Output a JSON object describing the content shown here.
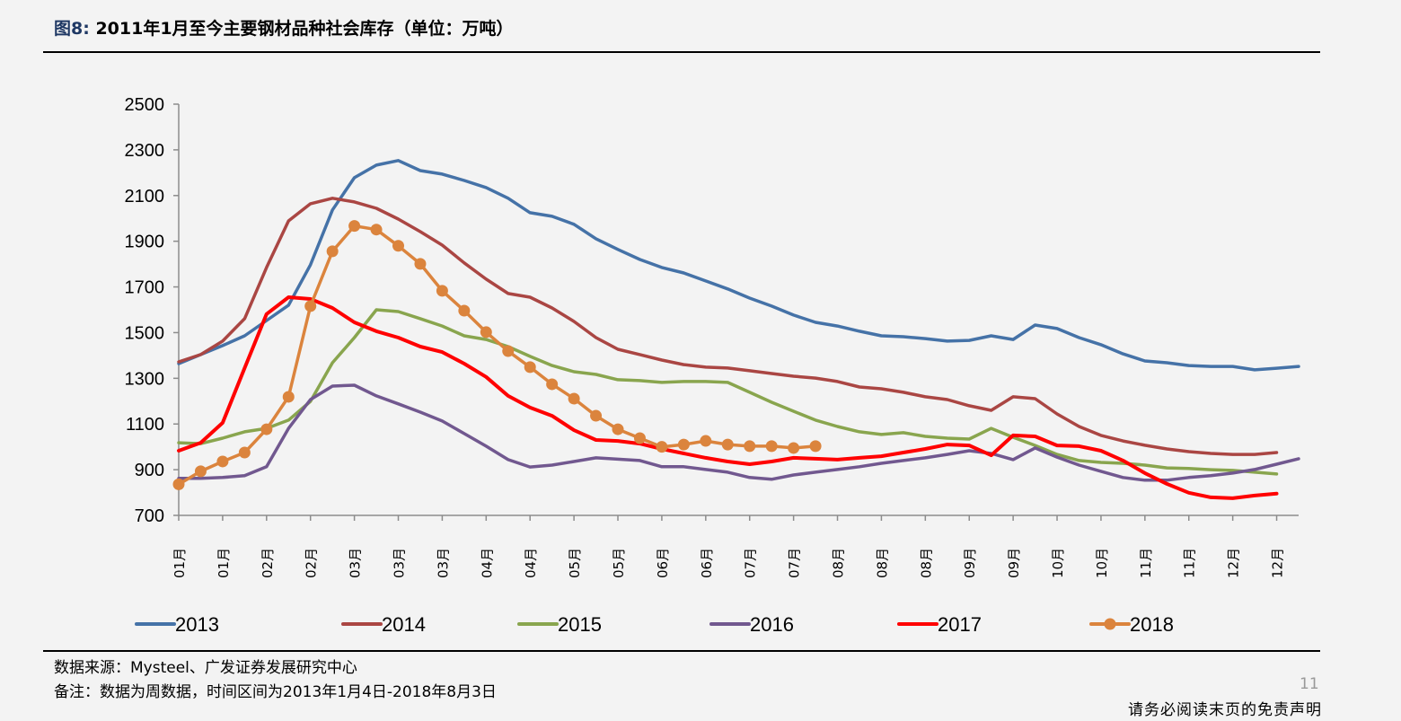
{
  "header": {
    "figure_number": "图8:",
    "title": "2011年1月至今主要钢材品种社会库存（单位：万吨）"
  },
  "footer": {
    "source": "数据来源：Mysteel、广发证券发展研究中心",
    "remark": "备注：数据为周数据，时间区间为2013年1月4日-2018年8月3日",
    "page_number": "11",
    "disclaimer": "请务必阅读末页的免责声明"
  },
  "chart_data": {
    "type": "line",
    "title": "2011年1月至今主要钢材品种社会库存（单位：万吨）",
    "xlabel": "",
    "ylabel": "万吨",
    "ylim": [
      700,
      2500
    ],
    "yticks": [
      700,
      900,
      1100,
      1300,
      1500,
      1700,
      1900,
      2100,
      2300,
      2500
    ],
    "grid": false,
    "legend_position": "bottom",
    "x_tick_labels": [
      "01月",
      "01月",
      "02月",
      "02月",
      "03月",
      "03月",
      "03月",
      "04月",
      "04月",
      "05月",
      "05月",
      "06月",
      "06月",
      "07月",
      "07月",
      "08月",
      "08月",
      "08月",
      "09月",
      "09月",
      "10月",
      "10月",
      "11月",
      "11月",
      "12月",
      "12月"
    ],
    "x_points": 52,
    "series": [
      {
        "name": "2013",
        "color": "#4572a7",
        "marker": false,
        "values": [
          1364,
          1404,
          1443,
          1486,
          1553,
          1620,
          1797,
          2037,
          2178,
          2233,
          2253,
          2209,
          2194,
          2166,
          2135,
          2088,
          2025,
          2009,
          1974,
          1911,
          1864,
          1820,
          1785,
          1761,
          1726,
          1691,
          1651,
          1616,
          1577,
          1545,
          1529,
          1506,
          1486,
          1482,
          1474,
          1463,
          1466,
          1486,
          1470,
          1533,
          1518,
          1478,
          1447,
          1407,
          1376,
          1368,
          1356,
          1352,
          1352,
          1337,
          1344,
          1352
        ]
      },
      {
        "name": "2014",
        "color": "#aa4643",
        "marker": false,
        "values": [
          1372,
          1404,
          1463,
          1561,
          1785,
          1989,
          2064,
          2088,
          2072,
          2044,
          1997,
          1942,
          1883,
          1805,
          1734,
          1671,
          1655,
          1608,
          1549,
          1478,
          1427,
          1404,
          1380,
          1360,
          1349,
          1345,
          1333,
          1321,
          1309,
          1301,
          1286,
          1262,
          1254,
          1239,
          1219,
          1207,
          1180,
          1160,
          1219,
          1211,
          1144,
          1089,
          1050,
          1026,
          1007,
          991,
          979,
          971,
          967,
          967,
          975
        ]
      },
      {
        "name": "2015",
        "color": "#89a54e",
        "marker": false,
        "values": [
          1018,
          1014,
          1038,
          1066,
          1081,
          1117,
          1199,
          1368,
          1478,
          1600,
          1592,
          1561,
          1529,
          1486,
          1470,
          1439,
          1396,
          1356,
          1329,
          1317,
          1294,
          1290,
          1282,
          1286,
          1286,
          1282,
          1239,
          1195,
          1156,
          1117,
          1089,
          1066,
          1054,
          1062,
          1046,
          1038,
          1034,
          1081,
          1042,
          1006,
          967,
          940,
          932,
          928,
          920,
          908,
          905,
          900,
          897,
          889,
          881
        ]
      },
      {
        "name": "2016",
        "color": "#71588f",
        "marker": false,
        "values": [
          862,
          862,
          866,
          874,
          913,
          1081,
          1207,
          1266,
          1270,
          1223,
          1188,
          1152,
          1113,
          1058,
          1003,
          944,
          912,
          920,
          936,
          952,
          946,
          940,
          913,
          913,
          901,
          889,
          866,
          858,
          877,
          889,
          901,
          913,
          928,
          940,
          952,
          967,
          983,
          971,
          944,
          995,
          955,
          920,
          893,
          866,
          854,
          854,
          866,
          874,
          885,
          901,
          924,
          948
        ]
      },
      {
        "name": "2017",
        "color": "#ff0000",
        "marker": false,
        "values": [
          983,
          1018,
          1105,
          1345,
          1581,
          1655,
          1647,
          1608,
          1545,
          1506,
          1478,
          1439,
          1415,
          1364,
          1306,
          1223,
          1172,
          1136,
          1073,
          1030,
          1026,
          1014,
          991,
          971,
          952,
          936,
          924,
          936,
          952,
          948,
          944,
          952,
          959,
          975,
          991,
          1010,
          1006,
          963,
          1050,
          1046,
          1006,
          1003,
          983,
          940,
          885,
          838,
          799,
          779,
          775,
          787,
          795
        ]
      },
      {
        "name": "2018",
        "color": "#db843d",
        "marker": true,
        "values": [
          836,
          893,
          936,
          975,
          1077,
          1219,
          1616,
          1856,
          1967,
          1951,
          1880,
          1801,
          1683,
          1596,
          1502,
          1419,
          1349,
          1274,
          1211,
          1136,
          1077,
          1038,
          1000,
          1010,
          1026,
          1010,
          1003,
          1003,
          995,
          1003
        ]
      }
    ]
  }
}
